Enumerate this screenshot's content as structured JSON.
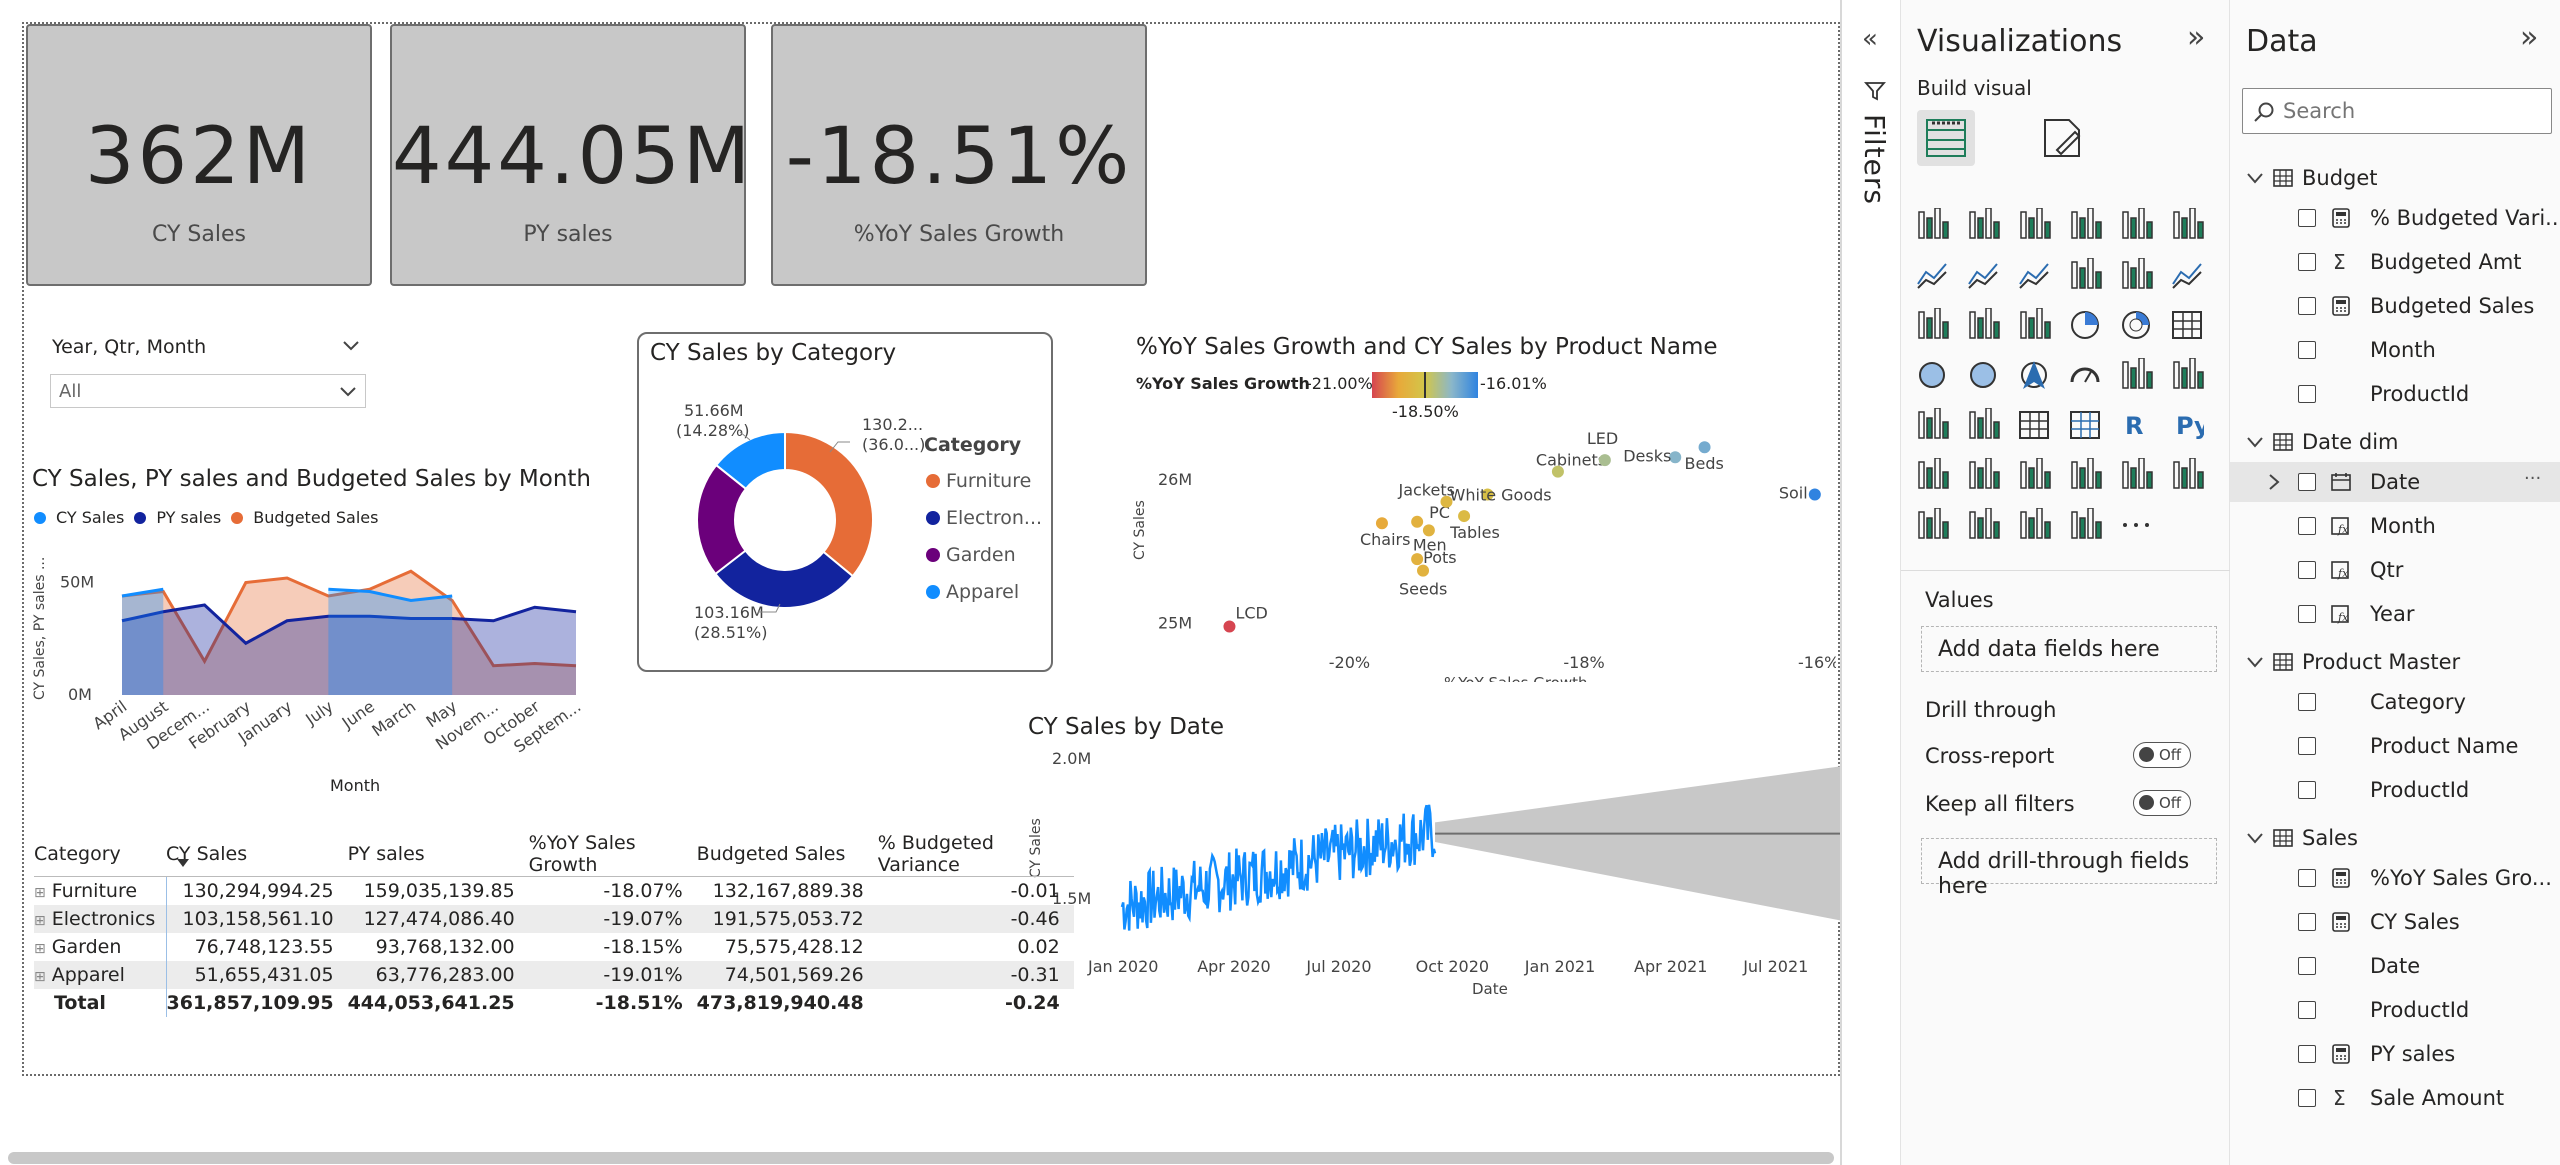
{
  "cards": [
    {
      "value": "362M",
      "label": "CY Sales"
    },
    {
      "value": "444.05M",
      "label": "PY sales"
    },
    {
      "value": "-18.51%",
      "label": "%YoY Sales Growth"
    }
  ],
  "slicer": {
    "title": "Year, Qtr, Month",
    "value": "All"
  },
  "month_chart": {
    "title": "CY Sales, PY sales and Budgeted Sales by Month",
    "legend": [
      "CY Sales",
      "PY sales",
      "Budgeted Sales"
    ],
    "ylabel": "CY Sales, PY sales ...",
    "xlabel": "Month",
    "yticks": [
      "50M",
      "0M"
    ]
  },
  "donut": {
    "title": "CY Sales by Category",
    "legend_title": "Category",
    "legend": [
      "Furniture",
      "Electron...",
      "Garden",
      "Apparel"
    ],
    "labels": [
      {
        "v": "130.2...",
        "p": "(36.0...)"
      },
      {
        "v": "103.16M",
        "p": "(28.51%)"
      },
      {
        "v": "51.66M",
        "p": "(14.28%)"
      }
    ]
  },
  "scatter": {
    "title": "%YoY Sales Growth and CY Sales by Product Name",
    "gradient_label": "%YoY Sales Growth",
    "gradient_min": "-21.00%",
    "gradient_max": "-16.01%",
    "gradient_mid": "-18.50%",
    "ylabel": "CY Sales",
    "xlabel": "%YoY Sales Growth",
    "yticks": [
      "26M",
      "25M"
    ],
    "xticks": [
      "-20%",
      "-18%",
      "-16%"
    ]
  },
  "date_chart": {
    "title": "CY Sales by Date",
    "ylabel": "CY Sales",
    "xlabel": "Date",
    "yticks": [
      "2.0M",
      "1.5M"
    ],
    "xticks": [
      "Jan 2020",
      "Apr 2020",
      "Jul 2020",
      "Oct 2020",
      "Jan 2021",
      "Apr 2021",
      "Jul 2021"
    ]
  },
  "table": {
    "headers": [
      "Category",
      "CY Sales",
      "PY sales",
      "%YoY Sales Growth",
      "Budgeted Sales",
      "% Budgeted Variance"
    ],
    "rows": [
      [
        "Furniture",
        "130,294,994.25",
        "159,035,139.85",
        "-18.07%",
        "132,167,889.38",
        "-0.01"
      ],
      [
        "Electronics",
        "103,158,561.10",
        "127,474,086.40",
        "-19.07%",
        "191,575,053.72",
        "-0.46"
      ],
      [
        "Garden",
        "76,748,123.55",
        "93,768,132.00",
        "-18.15%",
        "75,575,428.12",
        "0.02"
      ],
      [
        "Apparel",
        "51,655,431.05",
        "63,776,283.00",
        "-19.01%",
        "74,501,569.26",
        "-0.31"
      ]
    ],
    "total": [
      "Total",
      "361,857,109.95",
      "444,053,641.25",
      "-18.51%",
      "473,819,940.48",
      "-0.24"
    ]
  },
  "filters_label": "Filters",
  "viz_pane": {
    "title": "Visualizations",
    "build_visual": "Build visual",
    "values_label": "Values",
    "add_data": "Add data fields here",
    "drill_through": "Drill through",
    "cross_report": "Cross-report",
    "keep_filters": "Keep all filters",
    "toggle_off": "Off",
    "add_drill": "Add drill-through fields here"
  },
  "data_pane": {
    "title": "Data",
    "search_placeholder": "Search",
    "tables": [
      {
        "name": "Budget",
        "fields": [
          {
            "name": "% Budgeted Vari...",
            "icon": "calc"
          },
          {
            "name": "Budgeted Amt",
            "icon": "sigma"
          },
          {
            "name": "Budgeted Sales",
            "icon": "calc"
          },
          {
            "name": "Month",
            "icon": ""
          },
          {
            "name": "ProductId",
            "icon": ""
          }
        ]
      },
      {
        "name": "Date dim",
        "fields": [
          {
            "name": "Date",
            "icon": "hierarchy"
          },
          {
            "name": "Month",
            "icon": "calc-col"
          },
          {
            "name": "Qtr",
            "icon": "calc-col"
          },
          {
            "name": "Year",
            "icon": "calc-col"
          }
        ]
      },
      {
        "name": "Product Master",
        "fields": [
          {
            "name": "Category",
            "icon": ""
          },
          {
            "name": "Product Name",
            "icon": ""
          },
          {
            "name": "ProductId",
            "icon": ""
          }
        ]
      },
      {
        "name": "Sales",
        "fields": [
          {
            "name": "%YoY Sales Gro...",
            "icon": "calc"
          },
          {
            "name": "CY Sales",
            "icon": "calc"
          },
          {
            "name": "Date",
            "icon": ""
          },
          {
            "name": "ProductId",
            "icon": ""
          },
          {
            "name": "PY sales",
            "icon": "calc"
          },
          {
            "name": "Sale Amount",
            "icon": "sigma"
          }
        ]
      }
    ]
  },
  "colors": {
    "cy": "#118DFF",
    "py": "#12239E",
    "budget": "#E66C37",
    "garden": "#6B007B",
    "card_bg": "#C8C8C8"
  },
  "chart_data": [
    {
      "type": "area",
      "title": "CY Sales, PY sales and Budgeted Sales by Month",
      "categories": [
        "April",
        "August",
        "Decem...",
        "February",
        "January",
        "July",
        "June",
        "March",
        "May",
        "Novem...",
        "October",
        "Septem..."
      ],
      "series": [
        {
          "name": "CY Sales",
          "values": [
            44,
            47,
            null,
            null,
            null,
            47,
            46,
            42,
            44,
            null,
            null,
            null
          ]
        },
        {
          "name": "PY sales",
          "values": [
            33,
            37,
            40,
            23,
            33,
            35,
            35,
            34,
            34,
            33,
            39,
            37
          ]
        },
        {
          "name": "Budgeted Sales",
          "values": [
            44,
            46,
            15,
            50,
            52,
            44,
            47,
            55,
            42,
            13,
            14,
            13
          ]
        }
      ],
      "xlabel": "Month",
      "ylabel": "CY Sales, PY sales ...",
      "ylim": [
        0,
        60
      ]
    },
    {
      "type": "pie",
      "title": "CY Sales by Category",
      "categories": [
        "Furniture",
        "Electronics",
        "Garden",
        "Apparel"
      ],
      "values": [
        130.29,
        103.16,
        76.75,
        51.66
      ]
    },
    {
      "type": "scatter",
      "title": "%YoY Sales Growth and CY Sales by Product Name",
      "points": [
        {
          "name": "LCD",
          "x": -21.0,
          "y": 24.98
        },
        {
          "name": "Chairs",
          "x": -19.7,
          "y": 25.7
        },
        {
          "name": "PC",
          "x": -19.4,
          "y": 25.71
        },
        {
          "name": "Jackets",
          "x": -19.15,
          "y": 25.85
        },
        {
          "name": "Men",
          "x": -19.3,
          "y": 25.65
        },
        {
          "name": "Pots",
          "x": -19.4,
          "y": 25.45
        },
        {
          "name": "Seeds",
          "x": -19.35,
          "y": 25.37
        },
        {
          "name": "Tables",
          "x": -19.0,
          "y": 25.75
        },
        {
          "name": "White Goods",
          "x": -18.8,
          "y": 25.9
        },
        {
          "name": "Cabinets",
          "x": -18.2,
          "y": 26.06
        },
        {
          "name": "LED",
          "x": -17.8,
          "y": 26.14
        },
        {
          "name": "Desks",
          "x": -17.2,
          "y": 26.16
        },
        {
          "name": "Beds",
          "x": -16.95,
          "y": 26.23
        },
        {
          "name": "Soil",
          "x": -16.01,
          "y": 25.9
        }
      ],
      "xlabel": "%YoY Sales Growth",
      "ylabel": "CY Sales"
    },
    {
      "type": "line",
      "title": "CY Sales by Date",
      "x_range": [
        "Jan 2020",
        "Sep 2020"
      ],
      "ylim": [
        1.35,
        2.0
      ],
      "forecast_range": [
        "Sep 2020",
        "Aug 2021"
      ],
      "xlabel": "Date",
      "ylabel": "CY Sales"
    }
  ]
}
